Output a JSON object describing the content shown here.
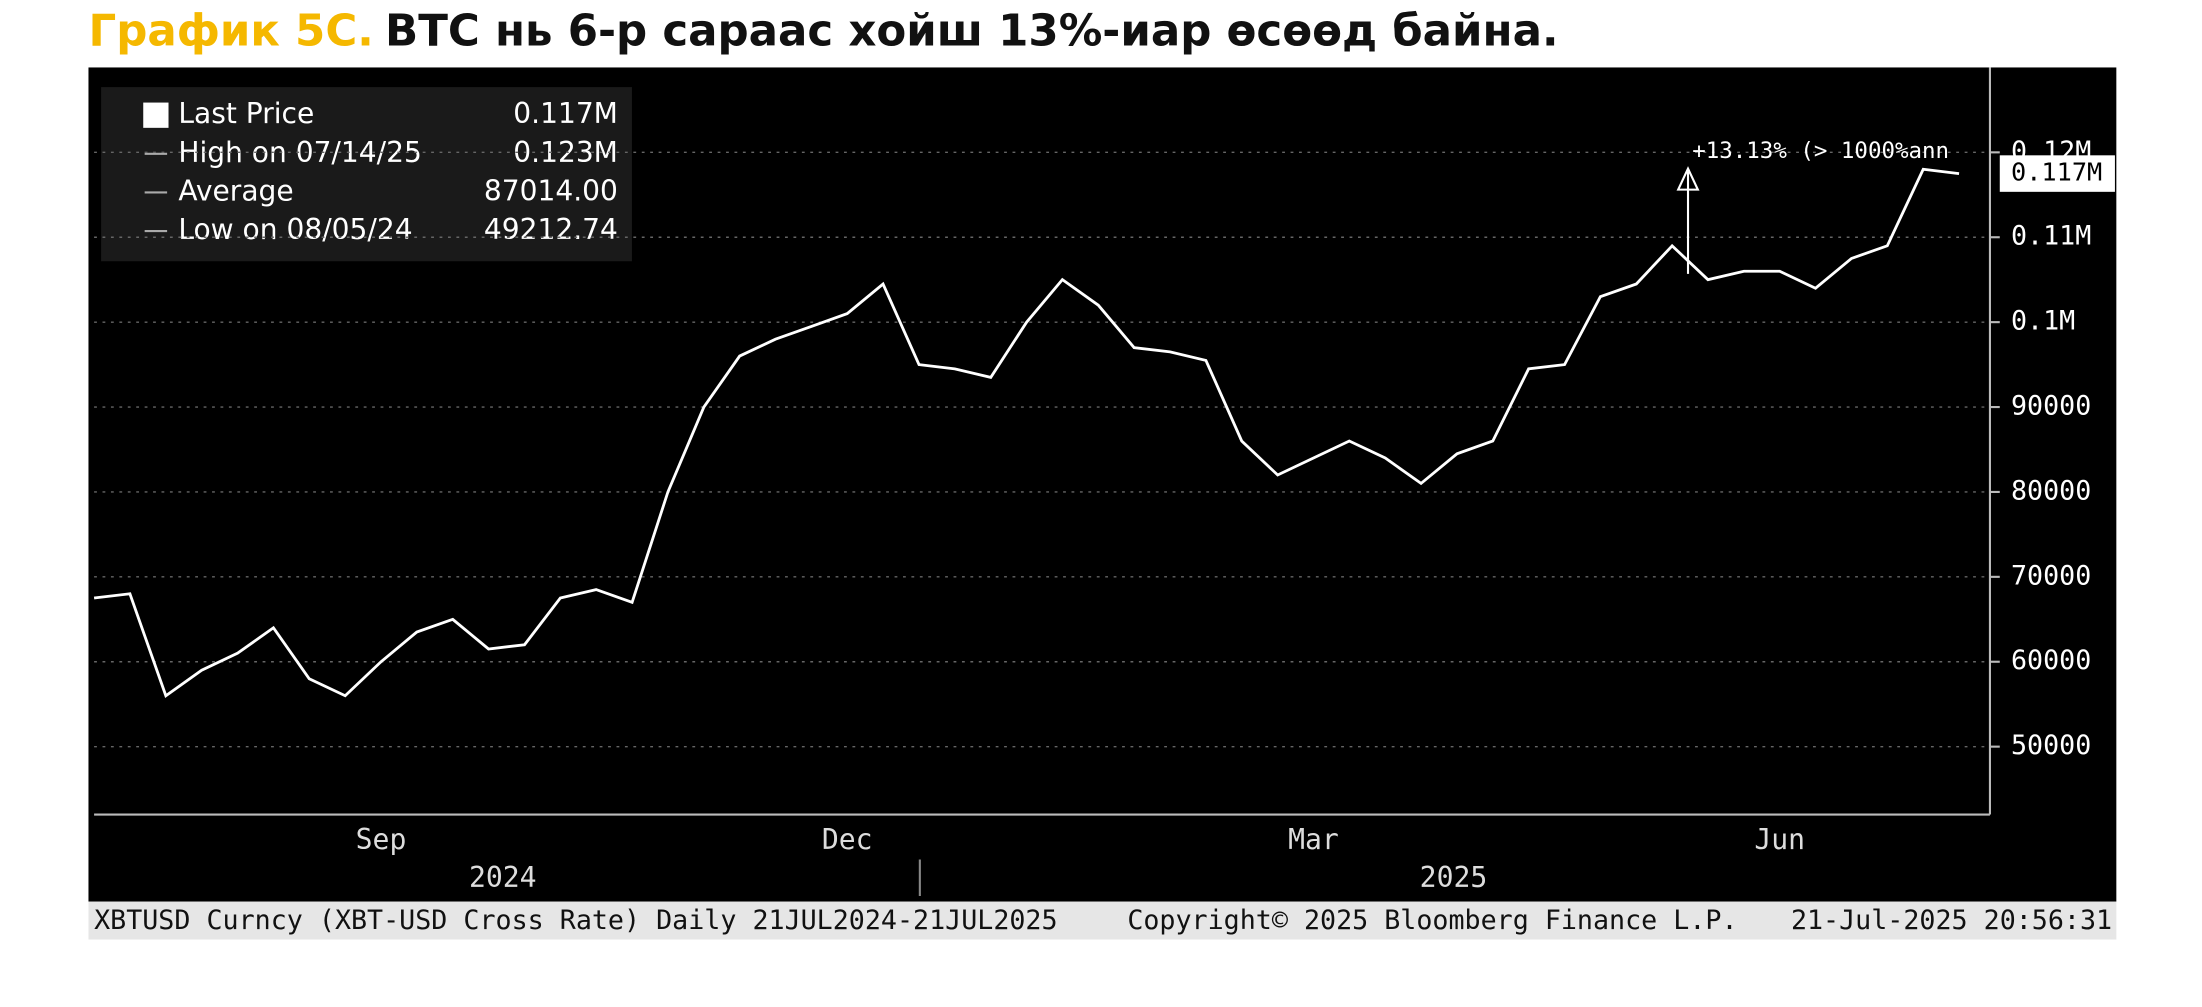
{
  "chart_data": {
    "type": "line",
    "title_label": "График 5С.",
    "title": "BTC нь 6-р сараас хойш 13%-иар өсөөд байна.",
    "legend": [
      {
        "name": "Last Price",
        "value": "0.117M"
      },
      {
        "name": "High on 07/14/25",
        "value": "0.123M"
      },
      {
        "name": "Average",
        "value": "87014.00"
      },
      {
        "name": "Low on 08/05/24",
        "value": "49212.74"
      }
    ],
    "annotation": "+13.13% (> 1000%ann",
    "last_price_label": "0.117M",
    "year_labels": [
      "2024",
      "2025"
    ],
    "footer": [
      "XBTUSD Curncy (XBT-USD Cross Rate)  Daily 21JUL2024-21JUL2025",
      "Copyright© 2025 Bloomberg Finance L.P.",
      "21-Jul-2025 20:56:31"
    ],
    "categories": [
      null,
      null,
      null,
      null,
      null,
      null,
      null,
      null,
      "Sep",
      null,
      null,
      null,
      null,
      null,
      null,
      null,
      null,
      null,
      null,
      null,
      null,
      "Dec",
      null,
      null,
      null,
      null,
      null,
      null,
      null,
      null,
      null,
      null,
      null,
      null,
      "Mar",
      null,
      null,
      null,
      null,
      null,
      null,
      null,
      null,
      null,
      null,
      null,
      null,
      "Jun",
      null,
      null,
      null,
      null,
      null
    ],
    "series": [
      {
        "name": "Last Price",
        "color": "#ffffff",
        "values": [
          67500,
          68000,
          56000,
          59000,
          61000,
          64000,
          58000,
          56000,
          60000,
          63500,
          65000,
          61500,
          62000,
          67500,
          68500,
          67000,
          80000,
          90000,
          96000,
          98000,
          99500,
          101000,
          104500,
          95000,
          94500,
          93500,
          100000,
          105000,
          102000,
          97000,
          96500,
          95500,
          86000,
          82000,
          84000,
          86000,
          84000,
          81000,
          84500,
          86000,
          94500,
          95000,
          103000,
          104500,
          109000,
          105000,
          106000,
          106000,
          104000,
          107500,
          109000,
          118000,
          117500
        ]
      }
    ],
    "ylim": [
      42000,
      130000
    ],
    "yticks": [
      50000,
      60000,
      70000,
      80000,
      90000,
      {
        "value": 100000,
        "label": "0.1M"
      },
      {
        "value": 110000,
        "label": "0.11M"
      },
      {
        "value": 120000,
        "label": "0.12M"
      }
    ],
    "grid": true
  }
}
